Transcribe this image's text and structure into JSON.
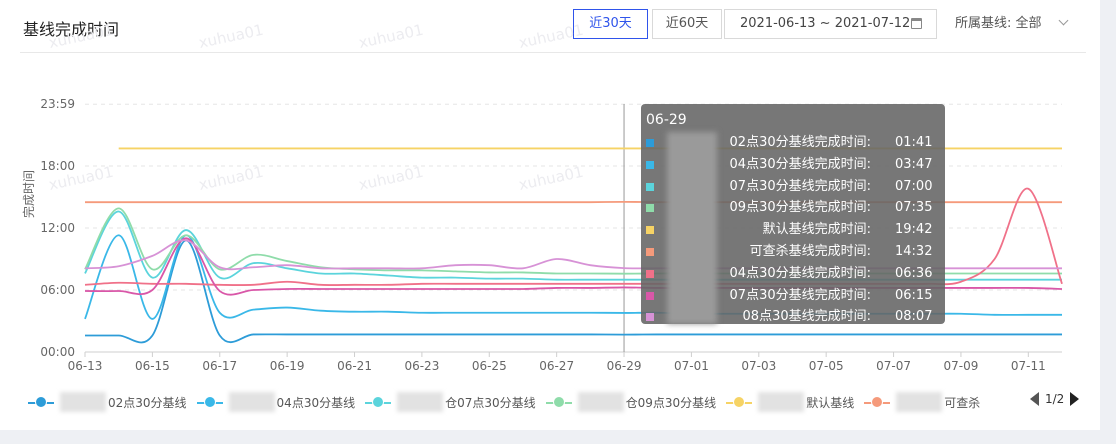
{
  "header": {
    "title": "基线完成时间",
    "range_buttons": [
      "近30天",
      "近60天"
    ],
    "active_range": "近30天",
    "date_range": "2021-06-13 ~ 2021-07-12",
    "filter_label": "所属基线:",
    "filter_value": "全部"
  },
  "watermark": "xuhua01",
  "tooltip": {
    "date": "06-29",
    "rows": [
      {
        "name": "02点30分基线完成时间:",
        "value": "01:41",
        "color": "#2d9cd8"
      },
      {
        "name": "04点30分基线完成时间:",
        "value": "03:47",
        "color": "#3ab8e8"
      },
      {
        "name": "07点30分基线完成时间:",
        "value": "07:00",
        "color": "#5bd4dc"
      },
      {
        "name": "09点30分基线完成时间:",
        "value": "07:35",
        "color": "#8fdcaa"
      },
      {
        "name": "默认基线完成时间:",
        "value": "19:42",
        "color": "#f6d365"
      },
      {
        "name": "可查杀基线完成时间:",
        "value": "14:32",
        "color": "#f59a7b"
      },
      {
        "name": "04点30分基线完成时间:",
        "value": "06:36",
        "color": "#f07189"
      },
      {
        "name": "07点30分基线完成时间:",
        "value": "06:15",
        "color": "#d957a8"
      },
      {
        "name": "08点30基线完成时间:",
        "value": "08:07",
        "color": "#d792d6"
      }
    ]
  },
  "legend": {
    "items": [
      {
        "label": "02点30分基线",
        "color": "#2d9cd8"
      },
      {
        "label": "04点30分基线",
        "color": "#3ab8e8"
      },
      {
        "label": "仓07点30分基线",
        "color": "#5bd4dc"
      },
      {
        "label": "仓09点30分基线",
        "color": "#8fdcaa"
      },
      {
        "label": "默认基线",
        "color": "#f6d365"
      },
      {
        "label": "可查杀",
        "color": "#f59a7b"
      }
    ],
    "page": "1/2"
  },
  "chart_data": {
    "type": "line",
    "ylabel": "完成时间",
    "yticks": [
      "00:00",
      "06:00",
      "12:00",
      "18:00",
      "23:59"
    ],
    "ylim": [
      0,
      24
    ],
    "x": [
      "06-13",
      "06-14",
      "06-15",
      "06-16",
      "06-17",
      "06-18",
      "06-19",
      "06-20",
      "06-21",
      "06-22",
      "06-23",
      "06-24",
      "06-25",
      "06-26",
      "06-27",
      "06-28",
      "06-29",
      "06-30",
      "07-01",
      "07-02",
      "07-03",
      "07-04",
      "07-05",
      "07-06",
      "07-07",
      "07-08",
      "07-09",
      "07-10",
      "07-11",
      "07-12"
    ],
    "xticks": [
      "06-13",
      "06-15",
      "06-17",
      "06-19",
      "06-21",
      "06-23",
      "06-25",
      "06-27",
      "06-29",
      "07-01",
      "07-03",
      "07-05",
      "07-07",
      "07-09",
      "07-11"
    ],
    "series": [
      {
        "color": "#2d9cd8",
        "values": [
          1.6,
          1.6,
          1.6,
          10.8,
          1.6,
          1.7,
          1.7,
          1.7,
          1.7,
          1.7,
          1.7,
          1.7,
          1.7,
          1.7,
          1.7,
          1.7,
          1.68,
          1.7,
          1.7,
          1.7,
          1.7,
          1.7,
          1.7,
          1.7,
          1.7,
          1.7,
          1.7,
          1.7,
          1.7,
          1.7
        ]
      },
      {
        "color": "#3ab8e8",
        "values": [
          3.2,
          11.3,
          3.2,
          11.3,
          3.8,
          4.1,
          4.3,
          4.0,
          3.9,
          3.9,
          3.8,
          3.8,
          3.8,
          3.8,
          3.8,
          3.8,
          3.78,
          3.8,
          3.7,
          3.7,
          3.7,
          3.7,
          3.7,
          3.7,
          3.7,
          3.7,
          3.7,
          3.6,
          3.6,
          3.6
        ]
      },
      {
        "color": "#5bd4dc",
        "values": [
          7.6,
          13.6,
          7.2,
          11.8,
          7.2,
          8.6,
          8.1,
          7.6,
          7.6,
          7.4,
          7.2,
          7.2,
          7.1,
          7.1,
          7.0,
          7.0,
          7.0,
          7.0,
          7.0,
          7.0,
          7.0,
          7.0,
          7.0,
          7.0,
          7.0,
          7.0,
          7.0,
          7.0,
          7.0,
          7.0
        ]
      },
      {
        "color": "#8fdcaa",
        "values": [
          8.0,
          13.9,
          8.0,
          11.3,
          8.0,
          9.4,
          8.8,
          8.2,
          8.0,
          7.9,
          7.9,
          7.8,
          7.7,
          7.7,
          7.6,
          7.6,
          7.58,
          7.6,
          7.6,
          7.6,
          7.6,
          7.6,
          7.6,
          7.6,
          7.6,
          7.6,
          7.6,
          7.6,
          7.6,
          7.6
        ]
      },
      {
        "color": "#f6d365",
        "values": [
          null,
          19.7,
          19.7,
          19.7,
          19.7,
          19.7,
          19.7,
          19.7,
          19.7,
          19.7,
          19.7,
          19.7,
          19.7,
          19.7,
          19.7,
          19.7,
          19.7,
          19.7,
          19.7,
          19.7,
          19.7,
          19.7,
          19.7,
          19.7,
          19.7,
          19.7,
          19.7,
          19.7,
          19.7,
          19.7
        ]
      },
      {
        "color": "#f59a7b",
        "values": [
          14.5,
          14.5,
          14.5,
          14.5,
          14.5,
          14.5,
          14.5,
          14.5,
          14.5,
          14.5,
          14.5,
          14.5,
          14.5,
          14.5,
          14.5,
          14.5,
          14.53,
          14.5,
          14.5,
          14.5,
          14.5,
          14.5,
          14.5,
          14.5,
          14.5,
          14.5,
          14.5,
          14.5,
          14.5,
          14.5
        ]
      },
      {
        "color": "#f07189",
        "values": [
          6.5,
          6.7,
          6.6,
          6.6,
          6.5,
          6.5,
          6.8,
          6.5,
          6.5,
          6.5,
          6.6,
          6.6,
          6.6,
          6.6,
          6.6,
          6.6,
          6.6,
          6.6,
          6.6,
          6.6,
          6.6,
          6.6,
          6.6,
          6.6,
          6.6,
          6.6,
          6.8,
          9.0,
          15.8,
          6.6
        ]
      },
      {
        "color": "#d957a8",
        "values": [
          5.9,
          5.9,
          6.0,
          11.0,
          5.9,
          6.0,
          6.1,
          6.1,
          6.1,
          6.1,
          6.1,
          6.1,
          6.1,
          6.1,
          6.2,
          6.2,
          6.25,
          6.2,
          6.2,
          6.2,
          6.2,
          6.2,
          6.2,
          6.2,
          6.2,
          6.2,
          6.2,
          6.2,
          6.2,
          6.1
        ]
      },
      {
        "color": "#d792d6",
        "values": [
          8.1,
          8.3,
          9.3,
          10.8,
          8.2,
          8.2,
          8.4,
          8.1,
          8.1,
          8.1,
          8.1,
          8.4,
          8.4,
          8.1,
          9.0,
          8.4,
          8.12,
          8.1,
          8.1,
          8.1,
          8.1,
          8.1,
          8.1,
          8.1,
          8.1,
          8.1,
          8.1,
          8.1,
          8.1,
          8.1
        ]
      }
    ],
    "grid": true,
    "highlight_x": "06-29"
  }
}
